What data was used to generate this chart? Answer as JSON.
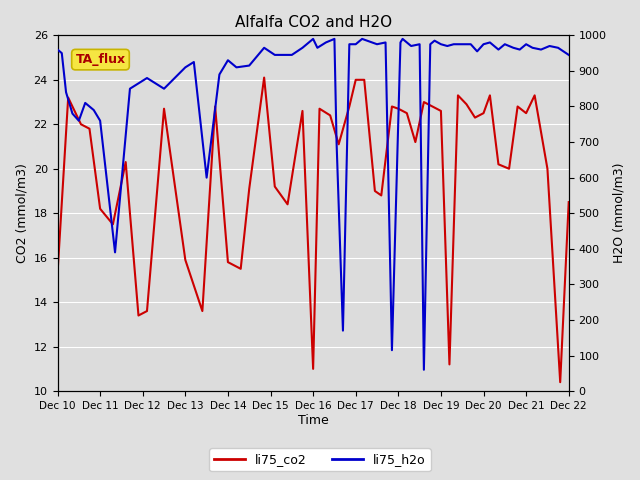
{
  "title": "Alfalfa CO2 and H2O",
  "xlabel": "Time",
  "ylabel_left": "CO2 (mmol/m3)",
  "ylabel_right": "H2O (mmol/m3)",
  "tag_label": "TA_flux",
  "ylim_left": [
    10,
    26
  ],
  "ylim_right": [
    0,
    1000
  ],
  "yticks_left": [
    10,
    12,
    14,
    16,
    18,
    20,
    22,
    24,
    26
  ],
  "yticks_right": [
    0,
    100,
    200,
    300,
    400,
    500,
    600,
    700,
    800,
    900,
    1000
  ],
  "xtick_labels": [
    "Dec 10",
    "Dec 11",
    "Dec 12",
    "Dec 13",
    "Dec 14",
    "Dec 15",
    "Dec 16",
    "Dec 17",
    "Dec 18",
    "Dec 19",
    "Dec 20",
    "Dec 21",
    "Dec 22"
  ],
  "color_co2": "#cc0000",
  "color_h2o": "#0000cc",
  "legend_co2": "li75_co2",
  "legend_h2o": "li75_h2o",
  "fig_bg": "#e0e0e0",
  "plot_bg": "#dcdcdc",
  "tag_bg": "#f5e642",
  "tag_border": "#c8b400",
  "co2_x": [
    0.0,
    0.25,
    0.55,
    0.75,
    1.0,
    1.3,
    1.6,
    1.9,
    2.1,
    2.5,
    3.0,
    3.4,
    3.7,
    4.0,
    4.3,
    4.5,
    4.85,
    5.1,
    5.4,
    5.75,
    6.0,
    6.15,
    6.4,
    6.6,
    6.85,
    7.0,
    7.2,
    7.45,
    7.6,
    7.85,
    8.0,
    8.2,
    8.4,
    8.6,
    8.8,
    9.0,
    9.2,
    9.4,
    9.6,
    9.8,
    10.0,
    10.15,
    10.35,
    10.6,
    10.8,
    11.0,
    11.2,
    11.5,
    11.8,
    12.0
  ],
  "co2_y": [
    15.3,
    23.2,
    22.0,
    21.8,
    18.2,
    17.5,
    20.3,
    13.4,
    13.6,
    22.7,
    15.9,
    13.6,
    22.8,
    15.8,
    15.5,
    19.1,
    24.1,
    19.2,
    18.4,
    22.6,
    11.0,
    22.7,
    22.4,
    21.1,
    22.8,
    24.0,
    24.0,
    19.0,
    18.8,
    22.8,
    22.7,
    22.5,
    21.2,
    23.0,
    22.8,
    22.6,
    11.2,
    23.3,
    22.9,
    22.3,
    22.5,
    23.3,
    20.2,
    20.0,
    22.8,
    22.5,
    23.3,
    20.0,
    10.4,
    18.5
  ],
  "h2o_x": [
    0.0,
    0.1,
    0.2,
    0.35,
    0.5,
    0.65,
    0.85,
    1.0,
    1.35,
    1.7,
    2.1,
    2.5,
    3.0,
    3.2,
    3.5,
    3.8,
    4.0,
    4.2,
    4.5,
    4.85,
    5.1,
    5.5,
    5.75,
    6.0,
    6.1,
    6.3,
    6.5,
    6.55,
    6.7,
    6.85,
    7.0,
    7.15,
    7.5,
    7.7,
    7.85,
    8.05,
    8.1,
    8.3,
    8.5,
    8.6,
    8.75,
    8.85,
    9.0,
    9.15,
    9.3,
    9.5,
    9.7,
    9.85,
    10.0,
    10.15,
    10.35,
    10.5,
    10.7,
    10.85,
    11.0,
    11.15,
    11.35,
    11.55,
    11.75,
    12.0
  ],
  "h2o_y": [
    960,
    950,
    840,
    780,
    760,
    810,
    790,
    760,
    390,
    850,
    880,
    850,
    910,
    925,
    600,
    890,
    930,
    910,
    915,
    965,
    945,
    945,
    965,
    990,
    965,
    980,
    990,
    700,
    170,
    975,
    975,
    990,
    975,
    980,
    115,
    980,
    990,
    970,
    975,
    60,
    975,
    985,
    975,
    970,
    975,
    975,
    975,
    955,
    975,
    980,
    960,
    975,
    965,
    960,
    975,
    965,
    960,
    970,
    965,
    945
  ]
}
